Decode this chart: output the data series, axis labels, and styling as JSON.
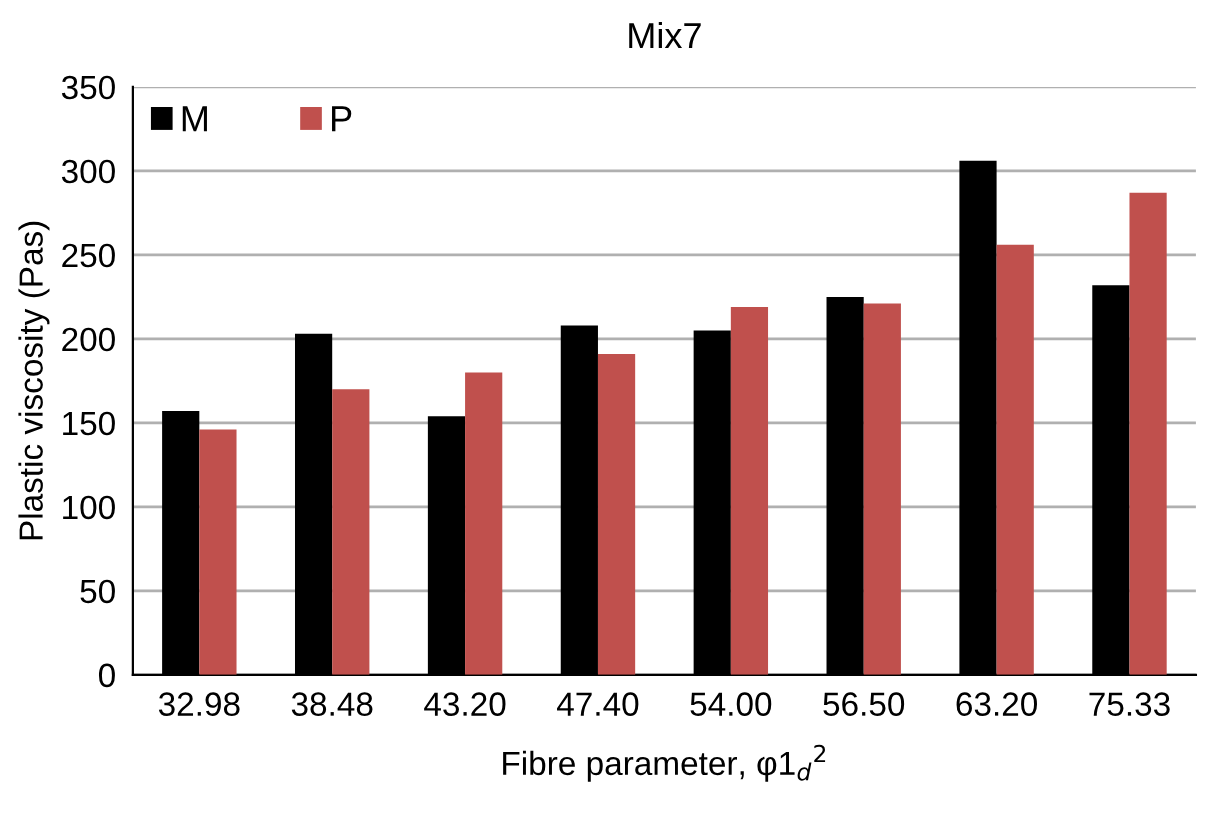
{
  "chart_data": {
    "type": "bar",
    "title": "Mix7",
    "xlabel": "Fibre parameter, φ1$_{d}$$^{2}$",
    "ylabel": "Plastic viscosity (Pas)",
    "categories": [
      "32.98",
      "38.48",
      "43.20",
      "47.40",
      "54.00",
      "56.50",
      "63.20",
      "75.33"
    ],
    "series": [
      {
        "name": "M",
        "color": "#000000",
        "values": [
          157,
          203,
          154,
          208,
          205,
          225,
          306,
          232
        ]
      },
      {
        "name": "P",
        "color": "#c0504d",
        "values": [
          146,
          170,
          180,
          191,
          219,
          221,
          256,
          287
        ]
      }
    ],
    "ylim": [
      0,
      350
    ],
    "yticks": [
      0,
      50,
      100,
      150,
      200,
      250,
      300,
      350
    ],
    "grid": "y",
    "legend": "top left"
  }
}
